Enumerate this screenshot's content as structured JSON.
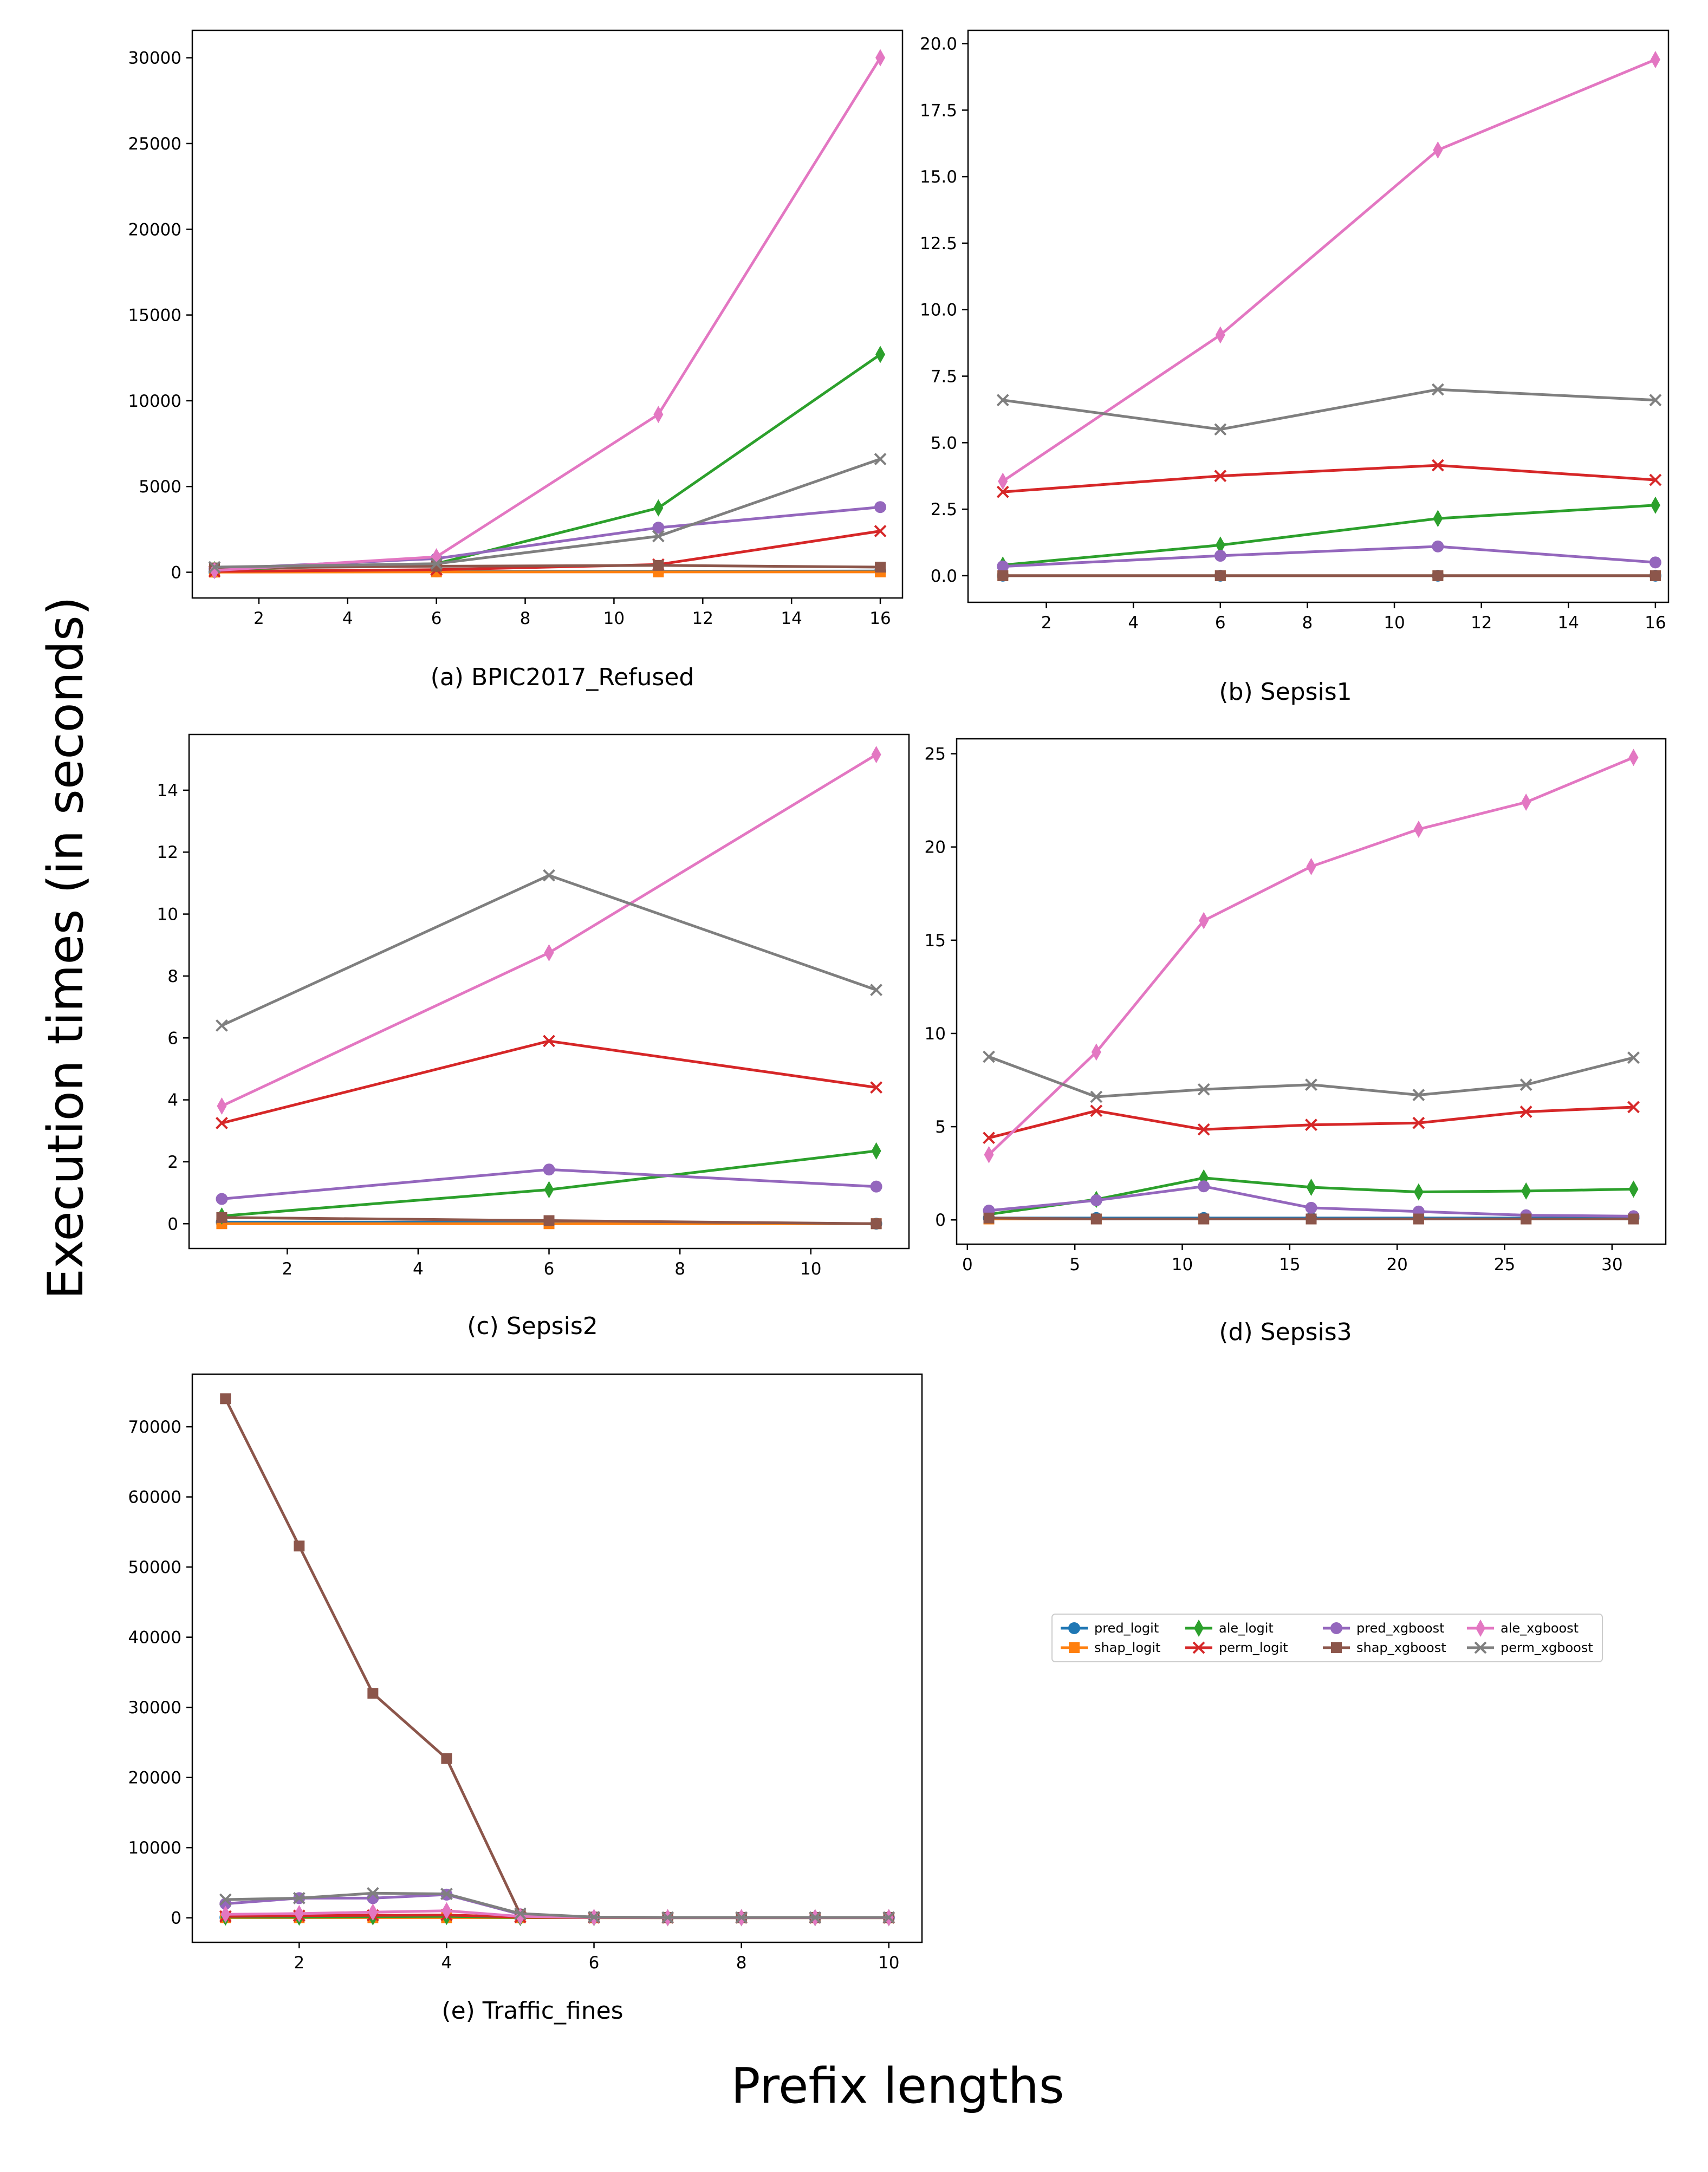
{
  "figure": {
    "ylabel": "Execution times (in seconds)",
    "xlabel": "Prefix lengths"
  },
  "series_styles": [
    {
      "name": "pred_logit",
      "color": "#1f77b4",
      "marker": "circle"
    },
    {
      "name": "shap_logit",
      "color": "#ff7f0e",
      "marker": "square"
    },
    {
      "name": "ale_logit",
      "color": "#2ca02c",
      "marker": "diamond"
    },
    {
      "name": "perm_logit",
      "color": "#d62728",
      "marker": "x"
    },
    {
      "name": "pred_xgboost",
      "color": "#9467bd",
      "marker": "circle"
    },
    {
      "name": "shap_xgboost",
      "color": "#8c564b",
      "marker": "square"
    },
    {
      "name": "ale_xgboost",
      "color": "#e377c2",
      "marker": "diamond"
    },
    {
      "name": "perm_xgboost",
      "color": "#7f7f7f",
      "marker": "x"
    }
  ],
  "legend": {
    "rows": [
      [
        "pred_logit",
        "ale_logit",
        "pred_xgboost",
        "ale_xgboost"
      ],
      [
        "shap_logit",
        "perm_logit",
        "shap_xgboost",
        "perm_xgboost"
      ]
    ]
  },
  "chart_data": [
    {
      "id": "a",
      "type": "line",
      "title": "(a) BPIC2017_Refused",
      "xlabel": "",
      "ylabel": "",
      "x": [
        1,
        6,
        11,
        16
      ],
      "xlim": [
        0.5,
        16.5
      ],
      "ylim": [
        -1500,
        31600
      ],
      "xticks": [
        2,
        4,
        6,
        8,
        10,
        12,
        14,
        16
      ],
      "yticks": [
        0,
        5000,
        10000,
        15000,
        20000,
        25000,
        30000
      ],
      "series": [
        {
          "name": "pred_logit",
          "values": [
            20,
            50,
            60,
            70
          ]
        },
        {
          "name": "shap_logit",
          "values": [
            10,
            20,
            20,
            20
          ]
        },
        {
          "name": "ale_logit",
          "values": [
            150,
            500,
            3750,
            12700
          ]
        },
        {
          "name": "perm_logit",
          "values": [
            50,
            150,
            450,
            2400
          ]
        },
        {
          "name": "pred_xgboost",
          "values": [
            200,
            800,
            2600,
            3800
          ]
        },
        {
          "name": "shap_xgboost",
          "values": [
            250,
            350,
            400,
            300
          ]
        },
        {
          "name": "ale_xgboost",
          "values": [
            100,
            900,
            9200,
            30000
          ]
        },
        {
          "name": "perm_xgboost",
          "values": [
            300,
            500,
            2100,
            6600
          ]
        }
      ]
    },
    {
      "id": "b",
      "type": "line",
      "title": "(b) Sepsis1",
      "xlabel": "",
      "ylabel": "",
      "x": [
        1,
        6,
        11,
        16
      ],
      "xlim": [
        0.2,
        16.3
      ],
      "ylim": [
        -1.0,
        20.5
      ],
      "xticks": [
        2,
        4,
        6,
        8,
        10,
        12,
        14,
        16
      ],
      "yticks": [
        0.0,
        2.5,
        5.0,
        7.5,
        10.0,
        12.5,
        15.0,
        17.5,
        20.0
      ],
      "yformat": "fixed1",
      "series": [
        {
          "name": "pred_logit",
          "values": [
            0.0,
            0.0,
            0.0,
            0.0
          ]
        },
        {
          "name": "shap_logit",
          "values": [
            0.0,
            0.0,
            0.0,
            0.0
          ]
        },
        {
          "name": "ale_logit",
          "values": [
            0.4,
            1.15,
            2.15,
            2.65
          ]
        },
        {
          "name": "perm_logit",
          "values": [
            3.15,
            3.75,
            4.15,
            3.6
          ]
        },
        {
          "name": "pred_xgboost",
          "values": [
            0.35,
            0.75,
            1.1,
            0.5
          ]
        },
        {
          "name": "shap_xgboost",
          "values": [
            0.0,
            0.0,
            0.0,
            0.0
          ]
        },
        {
          "name": "ale_xgboost",
          "values": [
            3.55,
            9.05,
            16.0,
            19.4
          ]
        },
        {
          "name": "perm_xgboost",
          "values": [
            6.6,
            5.5,
            7.0,
            6.6
          ]
        }
      ]
    },
    {
      "id": "c",
      "type": "line",
      "title": "(c) Sepsis2",
      "xlabel": "",
      "ylabel": "",
      "x": [
        1,
        6,
        11
      ],
      "xlim": [
        0.5,
        11.5
      ],
      "ylim": [
        -0.8,
        15.8
      ],
      "xticks": [
        2,
        4,
        6,
        8,
        10
      ],
      "yticks": [
        0,
        2,
        4,
        6,
        8,
        10,
        12,
        14
      ],
      "series": [
        {
          "name": "pred_logit",
          "values": [
            0.05,
            0.05,
            0.0
          ]
        },
        {
          "name": "shap_logit",
          "values": [
            0.0,
            0.0,
            0.0
          ]
        },
        {
          "name": "ale_logit",
          "values": [
            0.25,
            1.1,
            2.35
          ]
        },
        {
          "name": "perm_logit",
          "values": [
            3.25,
            5.9,
            4.4
          ]
        },
        {
          "name": "pred_xgboost",
          "values": [
            0.8,
            1.75,
            1.2
          ]
        },
        {
          "name": "shap_xgboost",
          "values": [
            0.2,
            0.1,
            0.0
          ]
        },
        {
          "name": "ale_xgboost",
          "values": [
            3.8,
            8.75,
            15.15
          ]
        },
        {
          "name": "perm_xgboost",
          "values": [
            6.4,
            11.25,
            7.55
          ]
        }
      ]
    },
    {
      "id": "d",
      "type": "line",
      "title": "(d) Sepsis3",
      "xlabel": "",
      "ylabel": "",
      "x": [
        1,
        6,
        11,
        16,
        21,
        26,
        31
      ],
      "xlim": [
        -0.5,
        32.5
      ],
      "ylim": [
        -1.3,
        25.8
      ],
      "xticks": [
        0,
        5,
        10,
        15,
        20,
        25,
        30
      ],
      "yticks": [
        0,
        5,
        10,
        15,
        20,
        25
      ],
      "series": [
        {
          "name": "pred_logit",
          "values": [
            0.1,
            0.1,
            0.1,
            0.1,
            0.1,
            0.1,
            0.1
          ]
        },
        {
          "name": "shap_logit",
          "values": [
            0.05,
            0.05,
            0.05,
            0.05,
            0.05,
            0.05,
            0.05
          ]
        },
        {
          "name": "ale_logit",
          "values": [
            0.3,
            1.1,
            2.25,
            1.75,
            1.5,
            1.55,
            1.65
          ]
        },
        {
          "name": "perm_logit",
          "values": [
            4.4,
            5.85,
            4.85,
            5.1,
            5.2,
            5.8,
            6.05
          ]
        },
        {
          "name": "pred_xgboost",
          "values": [
            0.5,
            1.05,
            1.8,
            0.65,
            0.45,
            0.25,
            0.2
          ]
        },
        {
          "name": "shap_xgboost",
          "values": [
            0.1,
            0.05,
            0.05,
            0.05,
            0.05,
            0.05,
            0.05
          ]
        },
        {
          "name": "ale_xgboost",
          "values": [
            3.5,
            9.0,
            16.05,
            18.95,
            20.95,
            22.4,
            24.8
          ]
        },
        {
          "name": "perm_xgboost",
          "values": [
            8.75,
            6.6,
            7.0,
            7.25,
            6.7,
            7.25,
            8.7
          ]
        }
      ]
    },
    {
      "id": "e",
      "type": "line",
      "title": "(e) Traffic_fines",
      "xlabel": "",
      "ylabel": "",
      "x": [
        1,
        2,
        3,
        4,
        5,
        6,
        7,
        8,
        9,
        10
      ],
      "xlim": [
        0.55,
        10.45
      ],
      "ylim": [
        -3500,
        77500
      ],
      "xticks": [
        2,
        4,
        6,
        8,
        10
      ],
      "yticks": [
        0,
        10000,
        20000,
        30000,
        40000,
        50000,
        60000,
        70000
      ],
      "series": [
        {
          "name": "pred_logit",
          "values": [
            50,
            50,
            50,
            50,
            20,
            10,
            5,
            5,
            5,
            5
          ]
        },
        {
          "name": "shap_logit",
          "values": [
            20,
            20,
            20,
            20,
            10,
            5,
            5,
            5,
            5,
            5
          ]
        },
        {
          "name": "ale_logit",
          "values": [
            100,
            100,
            150,
            200,
            50,
            20,
            10,
            10,
            10,
            10
          ]
        },
        {
          "name": "perm_logit",
          "values": [
            200,
            300,
            350,
            400,
            100,
            30,
            20,
            20,
            20,
            20
          ]
        },
        {
          "name": "pred_xgboost",
          "values": [
            2000,
            2800,
            2800,
            3300,
            500,
            100,
            50,
            50,
            50,
            50
          ]
        },
        {
          "name": "shap_xgboost",
          "values": [
            74000,
            53000,
            32000,
            22700,
            500,
            100,
            50,
            50,
            50,
            50
          ]
        },
        {
          "name": "ale_xgboost",
          "values": [
            500,
            600,
            800,
            1000,
            200,
            50,
            20,
            20,
            20,
            20
          ]
        },
        {
          "name": "perm_xgboost",
          "values": [
            2600,
            2800,
            3500,
            3400,
            600,
            100,
            50,
            50,
            50,
            50
          ]
        }
      ]
    }
  ]
}
